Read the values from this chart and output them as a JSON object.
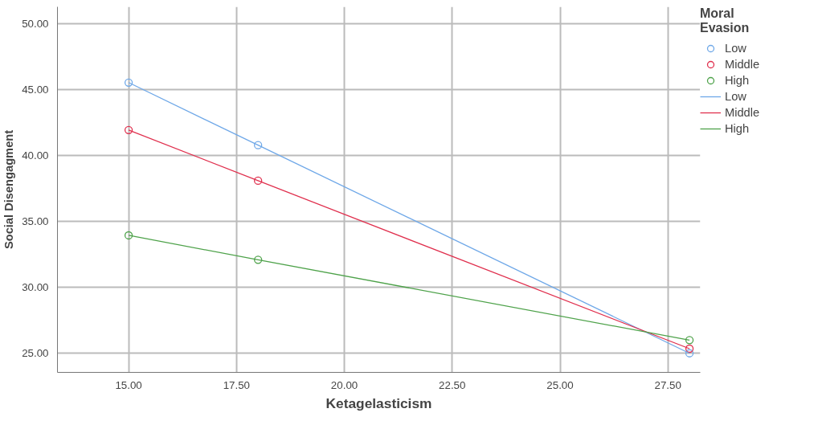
{
  "chart_data": {
    "type": "line",
    "xlabel": "Ketagelasticism",
    "ylabel": "Social Disengagment",
    "legend_title": "Moral\nEvasion",
    "x": [
      15,
      18,
      28
    ],
    "series": [
      {
        "name": "Low",
        "type": "scatter",
        "marker": "circle",
        "color": "#6fa8e8",
        "values": [
          45.55,
          40.8,
          25.0
        ]
      },
      {
        "name": "Middle",
        "type": "scatter",
        "marker": "circle",
        "color": "#e0304e",
        "values": [
          41.95,
          38.1,
          25.35
        ]
      },
      {
        "name": "High",
        "type": "scatter",
        "marker": "circle",
        "color": "#4ea24a",
        "values": [
          33.95,
          32.1,
          26.0
        ]
      },
      {
        "name": "Low",
        "color": "#6fa8e8",
        "values": [
          45.55,
          40.8,
          25.0
        ]
      },
      {
        "name": "Middle",
        "color": "#e0304e",
        "values": [
          41.95,
          38.1,
          25.35
        ]
      },
      {
        "name": "High",
        "color": "#4ea24a",
        "values": [
          33.95,
          32.1,
          26.0
        ]
      }
    ],
    "xlim": [
      13.35,
      28.25
    ],
    "ylim": [
      23.55,
      51.3
    ],
    "xticks": [
      {
        "value": 15,
        "label": "15.00"
      },
      {
        "value": 17.5,
        "label": "17.50"
      },
      {
        "value": 20,
        "label": "20.00"
      },
      {
        "value": 22.5,
        "label": "22.50"
      },
      {
        "value": 25,
        "label": "25.00"
      },
      {
        "value": 27.5,
        "label": "27.50"
      }
    ],
    "yticks": [
      {
        "value": 25,
        "label": "25.00"
      },
      {
        "value": 30,
        "label": "30.00"
      },
      {
        "value": 35,
        "label": "35.00"
      },
      {
        "value": 40,
        "label": "40.00"
      },
      {
        "value": 45,
        "label": "45.00"
      },
      {
        "value": 50,
        "label": "50.00"
      }
    ],
    "grid": true,
    "legend": "top right",
    "line_style": "solid"
  }
}
